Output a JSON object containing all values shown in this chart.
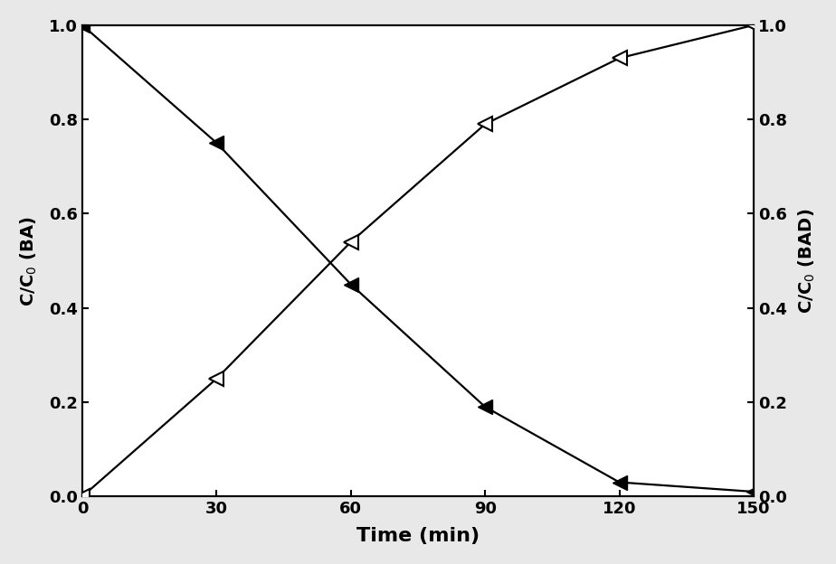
{
  "time": [
    0,
    30,
    60,
    90,
    120,
    150
  ],
  "BA": [
    1.0,
    0.75,
    0.45,
    0.19,
    0.03,
    0.01
  ],
  "BAD": [
    0.0,
    0.25,
    0.54,
    0.79,
    0.93,
    1.0
  ],
  "xlabel": "Time (min)",
  "ylabel_left": "C/C$_0$ (BA)",
  "ylabel_right": "C/C$_0$ (BAD)",
  "xlim": [
    0,
    150
  ],
  "ylim": [
    0.0,
    1.0
  ],
  "xticks": [
    0,
    30,
    60,
    90,
    120,
    150
  ],
  "yticks": [
    0.0,
    0.2,
    0.4,
    0.6,
    0.8,
    1.0
  ],
  "line_color": "#000000",
  "marker_size": 11,
  "linewidth": 1.6,
  "bg_color": "#e8e8e8"
}
